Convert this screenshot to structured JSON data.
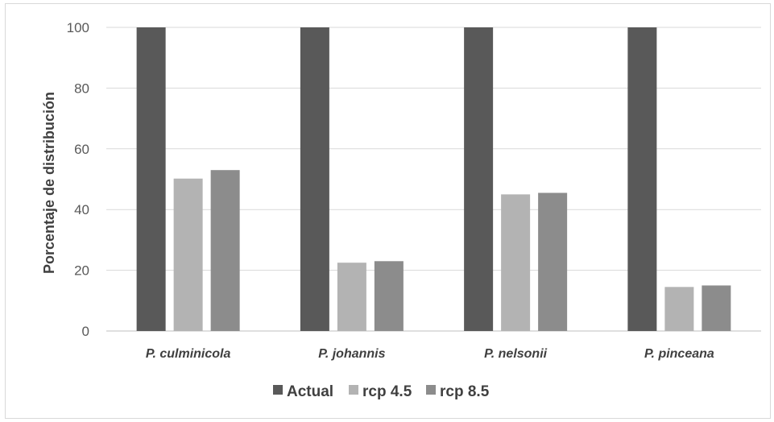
{
  "chart_data": {
    "type": "bar",
    "title": "",
    "xlabel": "",
    "ylabel": "Porcentaje de distribución",
    "ylim": [
      0,
      100
    ],
    "yticks": [
      0,
      20,
      40,
      60,
      80,
      100
    ],
    "grid": true,
    "legend_position": "bottom",
    "categories": [
      "P. culminicola",
      "P. johannis",
      "P. nelsonii",
      "P. pinceana"
    ],
    "series": [
      {
        "name": "Actual",
        "values": [
          100,
          100,
          100,
          100
        ],
        "color": "#595959"
      },
      {
        "name": "rcp 4.5",
        "values": [
          50.2,
          22.5,
          45,
          14.5
        ],
        "color": "#b3b3b3"
      },
      {
        "name": "rcp 8.5",
        "values": [
          53,
          23,
          45.5,
          15
        ],
        "color": "#8c8c8c"
      }
    ]
  }
}
